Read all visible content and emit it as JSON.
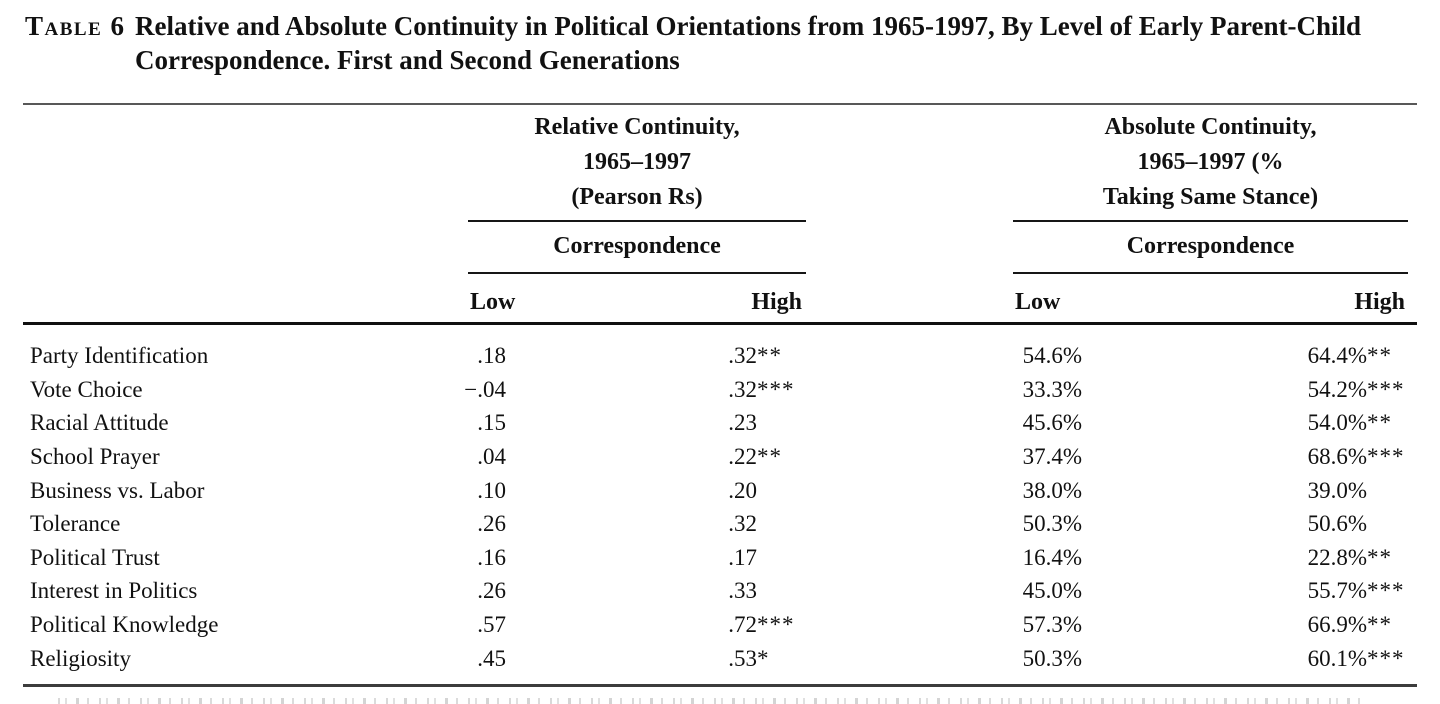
{
  "caption": {
    "label": "Table 6",
    "title": "Relative and Absolute Continuity in Political Orientations from 1965-1997, By Level of Early Parent-Child Correspondence. First and Second Generations"
  },
  "header": {
    "relative_group": {
      "lines": [
        "Relative Continuity,",
        "1965–1997",
        "(Pearson Rs)"
      ],
      "subheader": "Correspondence",
      "columns": [
        "Low",
        "High"
      ]
    },
    "absolute_group": {
      "lines": [
        "Absolute Continuity,",
        "1965–1997 (%",
        "Taking Same Stance)"
      ],
      "subheader": "Correspondence",
      "columns": [
        "Low",
        "High"
      ]
    }
  },
  "rows": [
    {
      "label": "Party Identification",
      "rel_low": ".18",
      "rel_high": ".32",
      "rel_high_sig": "**",
      "abs_low": "54.6%",
      "abs_high": "64.4%",
      "abs_high_sig": "**"
    },
    {
      "label": "Vote Choice",
      "rel_low": "−.04",
      "rel_high": ".32",
      "rel_high_sig": "***",
      "abs_low": "33.3%",
      "abs_high": "54.2%",
      "abs_high_sig": "***"
    },
    {
      "label": "Racial Attitude",
      "rel_low": ".15",
      "rel_high": ".23",
      "rel_high_sig": "",
      "abs_low": "45.6%",
      "abs_high": "54.0%",
      "abs_high_sig": "**"
    },
    {
      "label": "School Prayer",
      "rel_low": ".04",
      "rel_high": ".22",
      "rel_high_sig": "**",
      "abs_low": "37.4%",
      "abs_high": "68.6%",
      "abs_high_sig": "***"
    },
    {
      "label": "Business vs. Labor",
      "rel_low": ".10",
      "rel_high": ".20",
      "rel_high_sig": "",
      "abs_low": "38.0%",
      "abs_high": "39.0%",
      "abs_high_sig": ""
    },
    {
      "label": "Tolerance",
      "rel_low": ".26",
      "rel_high": ".32",
      "rel_high_sig": "",
      "abs_low": "50.3%",
      "abs_high": "50.6%",
      "abs_high_sig": ""
    },
    {
      "label": "Political Trust",
      "rel_low": ".16",
      "rel_high": ".17",
      "rel_high_sig": "",
      "abs_low": "16.4%",
      "abs_high": "22.8%",
      "abs_high_sig": "**"
    },
    {
      "label": "Interest in Politics",
      "rel_low": ".26",
      "rel_high": ".33",
      "rel_high_sig": "",
      "abs_low": "45.0%",
      "abs_high": "55.7%",
      "abs_high_sig": "***"
    },
    {
      "label": "Political Knowledge",
      "rel_low": ".57",
      "rel_high": ".72",
      "rel_high_sig": "***",
      "abs_low": "57.3%",
      "abs_high": "66.9%",
      "abs_high_sig": "**"
    },
    {
      "label": "Religiosity",
      "rel_low": ".45",
      "rel_high": ".53",
      "rel_high_sig": "*",
      "abs_low": "50.3%",
      "abs_high": "60.1%",
      "abs_high_sig": "***"
    }
  ],
  "colors": {
    "text": "#111111",
    "rule_gray": "#585858",
    "rule_black": "#101010"
  }
}
